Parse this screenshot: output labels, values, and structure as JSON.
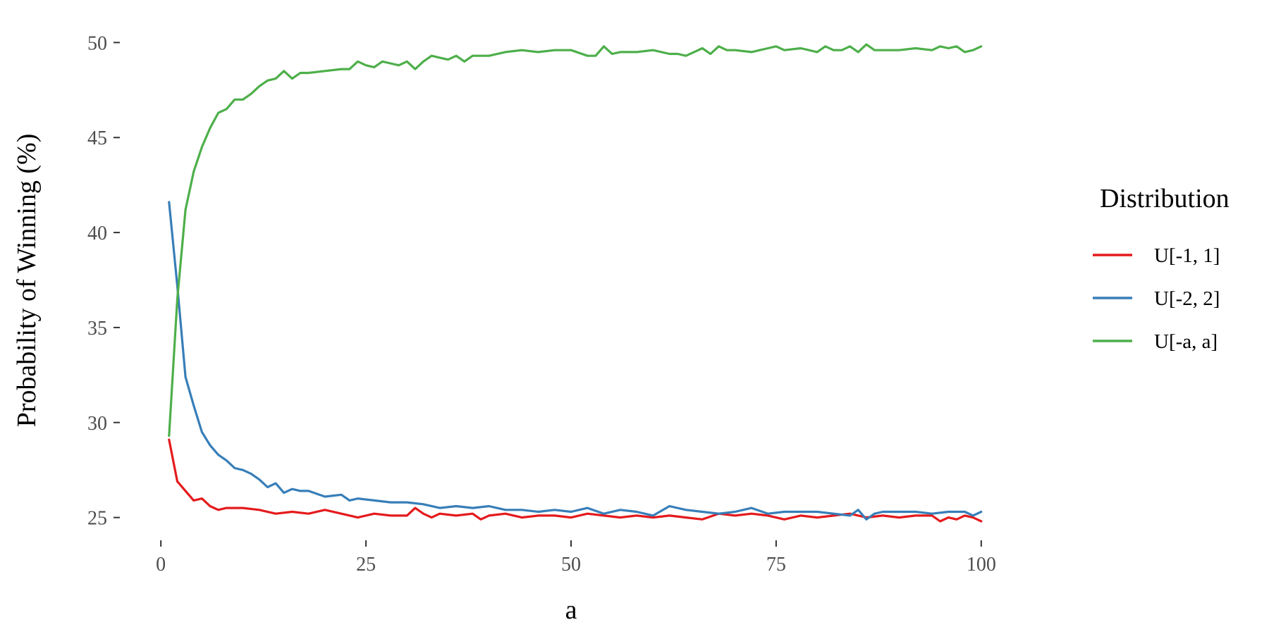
{
  "chart_data": {
    "type": "line",
    "title": "",
    "xlabel": "a",
    "ylabel": "Probability of Winning (%)",
    "xlim": [
      -5,
      105
    ],
    "ylim": [
      23.8,
      51.2
    ],
    "x_ticks": [
      0,
      25,
      50,
      75,
      100
    ],
    "x_tick_labels": [
      "0",
      "25",
      "50",
      "75",
      "100"
    ],
    "y_ticks": [
      25,
      30,
      35,
      40,
      45,
      50
    ],
    "y_tick_labels": [
      "25",
      "30",
      "35",
      "40",
      "45",
      "50"
    ],
    "grid": false,
    "legend": {
      "title": "Distribution",
      "position": "right"
    },
    "series": [
      {
        "name": "U[-1, 1]",
        "color": "#E41A1C",
        "points": [
          [
            1,
            29.1
          ],
          [
            2,
            26.9
          ],
          [
            3,
            26.4
          ],
          [
            4,
            25.9
          ],
          [
            5,
            26.0
          ],
          [
            6,
            25.6
          ],
          [
            7,
            25.4
          ],
          [
            8,
            25.5
          ],
          [
            9,
            25.5
          ],
          [
            10,
            25.5
          ],
          [
            12,
            25.4
          ],
          [
            14,
            25.2
          ],
          [
            16,
            25.3
          ],
          [
            18,
            25.2
          ],
          [
            20,
            25.4
          ],
          [
            22,
            25.2
          ],
          [
            24,
            25.0
          ],
          [
            26,
            25.2
          ],
          [
            28,
            25.1
          ],
          [
            30,
            25.1
          ],
          [
            31,
            25.5
          ],
          [
            32,
            25.2
          ],
          [
            33,
            25.0
          ],
          [
            34,
            25.2
          ],
          [
            36,
            25.1
          ],
          [
            38,
            25.2
          ],
          [
            39,
            24.9
          ],
          [
            40,
            25.1
          ],
          [
            42,
            25.2
          ],
          [
            44,
            25.0
          ],
          [
            46,
            25.1
          ],
          [
            48,
            25.1
          ],
          [
            50,
            25.0
          ],
          [
            52,
            25.2
          ],
          [
            54,
            25.1
          ],
          [
            56,
            25.0
          ],
          [
            58,
            25.1
          ],
          [
            60,
            25.0
          ],
          [
            62,
            25.1
          ],
          [
            64,
            25.0
          ],
          [
            66,
            24.9
          ],
          [
            68,
            25.2
          ],
          [
            70,
            25.1
          ],
          [
            72,
            25.2
          ],
          [
            74,
            25.1
          ],
          [
            76,
            24.9
          ],
          [
            78,
            25.1
          ],
          [
            80,
            25.0
          ],
          [
            82,
            25.1
          ],
          [
            84,
            25.2
          ],
          [
            86,
            25.0
          ],
          [
            88,
            25.1
          ],
          [
            90,
            25.0
          ],
          [
            92,
            25.1
          ],
          [
            94,
            25.1
          ],
          [
            95,
            24.8
          ],
          [
            96,
            25.0
          ],
          [
            97,
            24.9
          ],
          [
            98,
            25.1
          ],
          [
            99,
            25.0
          ],
          [
            100,
            24.8
          ]
        ]
      },
      {
        "name": "U[-2, 2]",
        "color": "#377EB8",
        "points": [
          [
            1,
            41.6
          ],
          [
            2,
            37.2
          ],
          [
            3,
            32.4
          ],
          [
            4,
            30.9
          ],
          [
            5,
            29.5
          ],
          [
            6,
            28.8
          ],
          [
            7,
            28.3
          ],
          [
            8,
            28.0
          ],
          [
            9,
            27.6
          ],
          [
            10,
            27.5
          ],
          [
            11,
            27.3
          ],
          [
            12,
            27.0
          ],
          [
            13,
            26.6
          ],
          [
            14,
            26.8
          ],
          [
            15,
            26.3
          ],
          [
            16,
            26.5
          ],
          [
            17,
            26.4
          ],
          [
            18,
            26.4
          ],
          [
            20,
            26.1
          ],
          [
            22,
            26.2
          ],
          [
            23,
            25.9
          ],
          [
            24,
            26.0
          ],
          [
            26,
            25.9
          ],
          [
            28,
            25.8
          ],
          [
            30,
            25.8
          ],
          [
            32,
            25.7
          ],
          [
            34,
            25.5
          ],
          [
            36,
            25.6
          ],
          [
            38,
            25.5
          ],
          [
            40,
            25.6
          ],
          [
            42,
            25.4
          ],
          [
            44,
            25.4
          ],
          [
            46,
            25.3
          ],
          [
            48,
            25.4
          ],
          [
            50,
            25.3
          ],
          [
            52,
            25.5
          ],
          [
            54,
            25.2
          ],
          [
            56,
            25.4
          ],
          [
            58,
            25.3
          ],
          [
            60,
            25.1
          ],
          [
            62,
            25.6
          ],
          [
            64,
            25.4
          ],
          [
            66,
            25.3
          ],
          [
            68,
            25.2
          ],
          [
            70,
            25.3
          ],
          [
            72,
            25.5
          ],
          [
            74,
            25.2
          ],
          [
            76,
            25.3
          ],
          [
            78,
            25.3
          ],
          [
            80,
            25.3
          ],
          [
            82,
            25.2
          ],
          [
            84,
            25.1
          ],
          [
            85,
            25.4
          ],
          [
            86,
            24.9
          ],
          [
            87,
            25.2
          ],
          [
            88,
            25.3
          ],
          [
            90,
            25.3
          ],
          [
            92,
            25.3
          ],
          [
            94,
            25.2
          ],
          [
            96,
            25.3
          ],
          [
            98,
            25.3
          ],
          [
            99,
            25.1
          ],
          [
            100,
            25.3
          ]
        ]
      },
      {
        "name": "U[-a, a]",
        "color": "#4DAF4A",
        "points": [
          [
            1,
            29.3
          ],
          [
            2,
            36.5
          ],
          [
            3,
            41.2
          ],
          [
            4,
            43.2
          ],
          [
            5,
            44.5
          ],
          [
            6,
            45.5
          ],
          [
            7,
            46.3
          ],
          [
            8,
            46.5
          ],
          [
            9,
            47.0
          ],
          [
            10,
            47.0
          ],
          [
            11,
            47.3
          ],
          [
            12,
            47.7
          ],
          [
            13,
            48.0
          ],
          [
            14,
            48.1
          ],
          [
            15,
            48.5
          ],
          [
            16,
            48.1
          ],
          [
            17,
            48.4
          ],
          [
            18,
            48.4
          ],
          [
            20,
            48.5
          ],
          [
            22,
            48.6
          ],
          [
            23,
            48.6
          ],
          [
            24,
            49.0
          ],
          [
            25,
            48.8
          ],
          [
            26,
            48.7
          ],
          [
            27,
            49.0
          ],
          [
            28,
            48.9
          ],
          [
            29,
            48.8
          ],
          [
            30,
            49.0
          ],
          [
            31,
            48.6
          ],
          [
            32,
            49.0
          ],
          [
            33,
            49.3
          ],
          [
            34,
            49.2
          ],
          [
            35,
            49.1
          ],
          [
            36,
            49.3
          ],
          [
            37,
            49.0
          ],
          [
            38,
            49.3
          ],
          [
            40,
            49.3
          ],
          [
            42,
            49.5
          ],
          [
            44,
            49.6
          ],
          [
            46,
            49.5
          ],
          [
            48,
            49.6
          ],
          [
            50,
            49.6
          ],
          [
            52,
            49.3
          ],
          [
            53,
            49.3
          ],
          [
            54,
            49.8
          ],
          [
            55,
            49.4
          ],
          [
            56,
            49.5
          ],
          [
            58,
            49.5
          ],
          [
            60,
            49.6
          ],
          [
            62,
            49.4
          ],
          [
            63,
            49.4
          ],
          [
            64,
            49.3
          ],
          [
            65,
            49.5
          ],
          [
            66,
            49.7
          ],
          [
            67,
            49.4
          ],
          [
            68,
            49.8
          ],
          [
            69,
            49.6
          ],
          [
            70,
            49.6
          ],
          [
            72,
            49.5
          ],
          [
            73,
            49.6
          ],
          [
            74,
            49.7
          ],
          [
            75,
            49.8
          ],
          [
            76,
            49.6
          ],
          [
            78,
            49.7
          ],
          [
            80,
            49.5
          ],
          [
            81,
            49.8
          ],
          [
            82,
            49.6
          ],
          [
            83,
            49.6
          ],
          [
            84,
            49.8
          ],
          [
            85,
            49.5
          ],
          [
            86,
            49.9
          ],
          [
            87,
            49.6
          ],
          [
            88,
            49.6
          ],
          [
            90,
            49.6
          ],
          [
            92,
            49.7
          ],
          [
            94,
            49.6
          ],
          [
            95,
            49.8
          ],
          [
            96,
            49.7
          ],
          [
            97,
            49.8
          ],
          [
            98,
            49.5
          ],
          [
            99,
            49.6
          ],
          [
            100,
            49.8
          ]
        ]
      }
    ]
  }
}
